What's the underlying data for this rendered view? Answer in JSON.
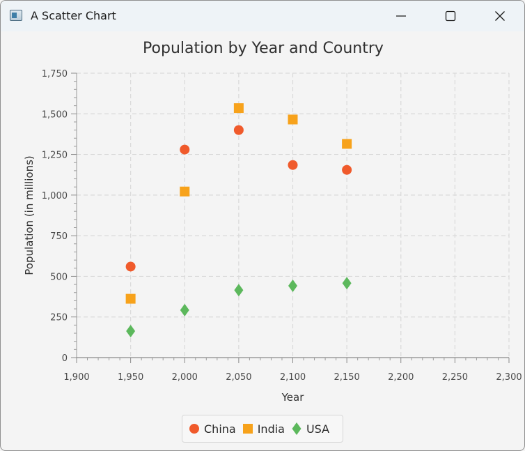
{
  "window": {
    "title": "A Scatter Chart",
    "icon": "app-window-icon"
  },
  "chart_data": {
    "type": "scatter",
    "title": "Population by Year and Country",
    "xlabel": "Year",
    "ylabel": "Population (in millions)",
    "xlim": [
      1900,
      2300
    ],
    "ylim": [
      0,
      1750
    ],
    "x_ticks": [
      "1,900",
      "1,950",
      "2,000",
      "2,050",
      "2,100",
      "2,150",
      "2,200",
      "2,250",
      "2,300"
    ],
    "y_ticks": [
      "0",
      "250",
      "500",
      "750",
      "1,000",
      "1,250",
      "1,500",
      "1,750"
    ],
    "grid": true,
    "legend_position": "bottom",
    "series": [
      {
        "name": "China",
        "marker": "circle",
        "color": "#f05a2b",
        "points": [
          [
            1950,
            560
          ],
          [
            2000,
            1280
          ],
          [
            2050,
            1400
          ],
          [
            2100,
            1185
          ],
          [
            2150,
            1155
          ]
        ]
      },
      {
        "name": "India",
        "marker": "square",
        "color": "#f7a21b",
        "points": [
          [
            1950,
            362
          ],
          [
            2000,
            1022
          ],
          [
            2050,
            1535
          ],
          [
            2100,
            1465
          ],
          [
            2150,
            1315
          ]
        ]
      },
      {
        "name": "USA",
        "marker": "diamond",
        "color": "#5cb85c",
        "points": [
          [
            1950,
            163
          ],
          [
            2000,
            292
          ],
          [
            2050,
            415
          ],
          [
            2100,
            442
          ],
          [
            2150,
            458
          ]
        ]
      }
    ]
  }
}
